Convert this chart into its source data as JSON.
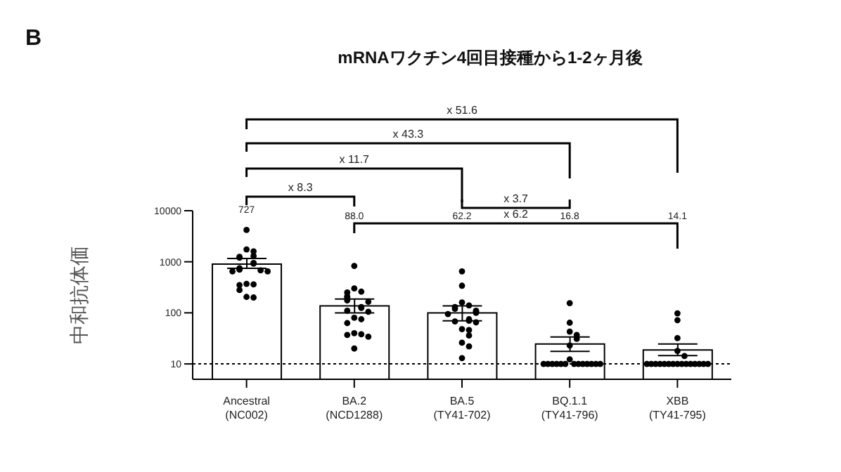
{
  "chart_data": {
    "type": "bar",
    "title": "mRNAワクチン4回目接種から1-2ヶ月後",
    "ylabel": "中和抗体価",
    "annotations": [
      "B",
      "x 51.6",
      "x 43.3",
      "x 11.7",
      "x 8.3",
      "x 3.7",
      "x 6.2",
      "727",
      "88.0",
      "62.2",
      "16.8",
      "14.1"
    ],
    "categories": [
      "Ancestral\n(NC002)",
      "BA.2\n(NCD1288)",
      "BA.5\n(TY41-702)",
      "BQ.1.1\n(TY41-796)",
      "XBB\n(TY41-795)"
    ],
    "series": [
      {
        "color": "#ffffff",
        "values": [
          900,
          137,
          100,
          24.6,
          18.8
        ],
        "errors": [
          [
            746,
            1158
          ],
          [
            100,
            187
          ],
          [
            70,
            137
          ],
          [
            17.6,
            33.7
          ],
          [
            14.6,
            24.6
          ]
        ]
      },
      {
        "type": "scatter",
        "color": "#000000",
        "x": [
          "Ancestral\n(NC002)",
          "Ancestral\n(NC002)",
          "Ancestral\n(NC002)",
          "Ancestral\n(NC002)",
          "Ancestral\n(NC002)",
          "Ancestral\n(NC002)",
          "Ancestral\n(NC002)",
          "Ancestral\n(NC002)",
          "Ancestral\n(NC002)",
          "Ancestral\n(NC002)",
          "Ancestral\n(NC002)",
          "Ancestral\n(NC002)",
          "Ancestral\n(NC002)",
          "Ancestral\n(NC002)",
          "Ancestral\n(NC002)",
          "Ancestral\n(NC002)",
          "Ancestral\n(NC002)",
          "Ancestral\n(NC002)",
          "Ancestral\n(NC002)",
          "Ancestral\n(NC002)",
          "BA.2\n(NCD1288)",
          "BA.2\n(NCD1288)",
          "BA.2\n(NCD1288)",
          "BA.2\n(NCD1288)",
          "BA.2\n(NCD1288)",
          "BA.2\n(NCD1288)",
          "BA.2\n(NCD1288)",
          "BA.2\n(NCD1288)",
          "BA.2\n(NCD1288)",
          "BA.2\n(NCD1288)",
          "BA.2\n(NCD1288)",
          "BA.2\n(NCD1288)",
          "BA.2\n(NCD1288)",
          "BA.2\n(NCD1288)",
          "BA.2\n(NCD1288)",
          "BA.2\n(NCD1288)",
          "BA.2\n(NCD1288)",
          "BA.2\n(NCD1288)",
          "BA.2\n(NCD1288)",
          "BA.2\n(NCD1288)",
          "BA.5\n(TY41-702)",
          "BA.5\n(TY41-702)",
          "BA.5\n(TY41-702)",
          "BA.5\n(TY41-702)",
          "BA.5\n(TY41-702)",
          "BA.5\n(TY41-702)",
          "BA.5\n(TY41-702)",
          "BA.5\n(TY41-702)",
          "BA.5\n(TY41-702)",
          "BA.5\n(TY41-702)",
          "BA.5\n(TY41-702)",
          "BA.5\n(TY41-702)",
          "BA.5\n(TY41-702)",
          "BA.5\n(TY41-702)",
          "BA.5\n(TY41-702)",
          "BA.5\n(TY41-702)",
          "BA.5\n(TY41-702)",
          "BA.5\n(TY41-702)",
          "BA.5\n(TY41-702)",
          "BA.5\n(TY41-702)",
          "BQ.1.1\n(TY41-796)",
          "BQ.1.1\n(TY41-796)",
          "BQ.1.1\n(TY41-796)",
          "BQ.1.1\n(TY41-796)",
          "BQ.1.1\n(TY41-796)",
          "BQ.1.1\n(TY41-796)",
          "BQ.1.1\n(TY41-796)",
          "BQ.1.1\n(TY41-796)",
          "BQ.1.1\n(TY41-796)",
          "BQ.1.1\n(TY41-796)",
          "BQ.1.1\n(TY41-796)",
          "BQ.1.1\n(TY41-796)",
          "BQ.1.1\n(TY41-796)",
          "BQ.1.1\n(TY41-796)",
          "BQ.1.1\n(TY41-796)",
          "BQ.1.1\n(TY41-796)",
          "BQ.1.1\n(TY41-796)",
          "BQ.1.1\n(TY41-796)",
          "BQ.1.1\n(TY41-796)",
          "BQ.1.1\n(TY41-796)",
          "XBB\n(TY41-795)",
          "XBB\n(TY41-795)",
          "XBB\n(TY41-795)",
          "XBB\n(TY41-795)",
          "XBB\n(TY41-795)",
          "XBB\n(TY41-795)",
          "XBB\n(TY41-795)",
          "XBB\n(TY41-795)",
          "XBB\n(TY41-795)",
          "XBB\n(TY41-795)",
          "XBB\n(TY41-795)",
          "XBB\n(TY41-795)",
          "XBB\n(TY41-795)",
          "XBB\n(TY41-795)",
          "XBB\n(TY41-795)",
          "XBB\n(TY41-795)",
          "XBB\n(TY41-795)",
          "XBB\n(TY41-795)",
          "XBB\n(TY41-795)",
          "XBB\n(TY41-795)"
        ],
        "values": [
          4200,
          1750,
          1600,
          1300,
          1250,
          1200,
          950,
          920,
          750,
          720,
          700,
          680,
          650,
          650,
          370,
          360,
          350,
          280,
          205,
          200,
          830,
          300,
          260,
          250,
          210,
          200,
          175,
          165,
          130,
          125,
          110,
          105,
          80,
          75,
          63,
          40,
          38,
          37,
          34,
          20,
          650,
          340,
          160,
          140,
          130,
          120,
          110,
          105,
          100,
          95,
          75,
          70,
          68,
          65,
          48,
          46,
          36,
          26,
          22,
          13,
          155,
          64,
          43,
          37,
          31,
          23,
          12.3,
          10,
          10,
          10,
          10,
          10,
          10,
          10,
          10,
          10,
          10,
          10,
          10,
          10,
          98,
          72,
          32,
          18,
          14.3,
          10,
          10,
          10,
          10,
          10,
          10,
          10,
          10,
          10,
          10,
          10,
          10,
          10,
          10,
          10
        ]
      }
    ],
    "marker": "circle",
    "log": true,
    "ylim": [
      5,
      10000
    ],
    "yticks": [
      10,
      100,
      1000,
      10000
    ],
    "grid": false,
    "legend": false,
    "ref_lines": [
      {
        "axis": "y",
        "value": 10,
        "line_style": "dotted",
        "color": "#000000"
      }
    ]
  }
}
